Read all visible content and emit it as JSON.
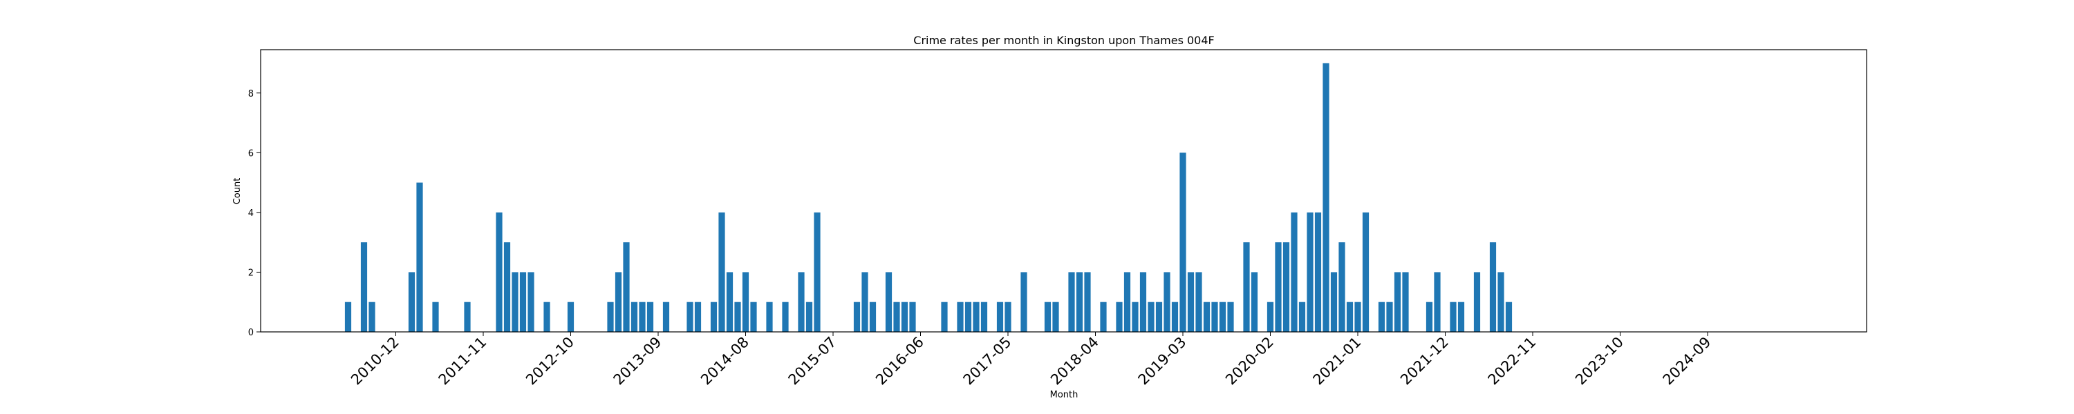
{
  "chart_data": {
    "type": "bar",
    "title": "Crime rates per month in Kingston upon Thames 004F",
    "xlabel": "Month",
    "ylabel": "Count",
    "ylim": [
      0,
      9.45
    ],
    "yticks": [
      0,
      2,
      4,
      6,
      8
    ],
    "xlim": [
      "2009-07",
      "2026-05"
    ],
    "xticks": [
      "2010-12",
      "2011-11",
      "2012-10",
      "2013-09",
      "2014-08",
      "2015-07",
      "2016-06",
      "2017-05",
      "2018-04",
      "2019-03",
      "2020-02",
      "2021-01",
      "2021-12",
      "2022-11",
      "2023-10",
      "2024-09"
    ],
    "bar_color": "#1f77b4",
    "legend": "none",
    "grid": false,
    "x": [
      "2010-06",
      "2010-08",
      "2010-09",
      "2011-02",
      "2011-03",
      "2011-05",
      "2011-09",
      "2012-01",
      "2012-02",
      "2012-03",
      "2012-04",
      "2012-05",
      "2012-07",
      "2012-10",
      "2013-03",
      "2013-04",
      "2013-05",
      "2013-06",
      "2013-07",
      "2013-08",
      "2013-10",
      "2014-01",
      "2014-02",
      "2014-04",
      "2014-05",
      "2014-06",
      "2014-07",
      "2014-08",
      "2014-09",
      "2014-11",
      "2015-01",
      "2015-03",
      "2015-04",
      "2015-05",
      "2015-10",
      "2015-11",
      "2015-12",
      "2016-02",
      "2016-03",
      "2016-04",
      "2016-05",
      "2016-09",
      "2016-11",
      "2016-12",
      "2017-01",
      "2017-02",
      "2017-04",
      "2017-05",
      "2017-07",
      "2017-10",
      "2017-11",
      "2018-01",
      "2018-02",
      "2018-03",
      "2018-05",
      "2018-07",
      "2018-08",
      "2018-09",
      "2018-10",
      "2018-11",
      "2018-12",
      "2019-01",
      "2019-02",
      "2019-03",
      "2019-04",
      "2019-05",
      "2019-06",
      "2019-07",
      "2019-08",
      "2019-09",
      "2019-11",
      "2019-12",
      "2020-02",
      "2020-03",
      "2020-04",
      "2020-05",
      "2020-06",
      "2020-07",
      "2020-08",
      "2020-09",
      "2020-10",
      "2020-11",
      "2020-12",
      "2021-01",
      "2021-02",
      "2021-04",
      "2021-05",
      "2021-06",
      "2021-07",
      "2021-10",
      "2021-11",
      "2022-01",
      "2022-02",
      "2022-04",
      "2022-06",
      "2022-07",
      "2022-08"
    ],
    "values": [
      1,
      3,
      1,
      2,
      5,
      1,
      1,
      4,
      3,
      2,
      2,
      2,
      1,
      1,
      1,
      2,
      3,
      1,
      1,
      1,
      1,
      1,
      1,
      1,
      4,
      2,
      1,
      2,
      1,
      1,
      1,
      2,
      1,
      4,
      1,
      2,
      1,
      2,
      1,
      1,
      1,
      1,
      1,
      1,
      1,
      1,
      1,
      1,
      2,
      1,
      1,
      2,
      2,
      2,
      1,
      1,
      2,
      1,
      2,
      1,
      1,
      2,
      1,
      6,
      2,
      2,
      1,
      1,
      1,
      1,
      3,
      2,
      1,
      3,
      3,
      4,
      1,
      4,
      4,
      9,
      2,
      3,
      1,
      1,
      4,
      1,
      1,
      2,
      2,
      1,
      2,
      1,
      1,
      2,
      3,
      2,
      1
    ]
  }
}
